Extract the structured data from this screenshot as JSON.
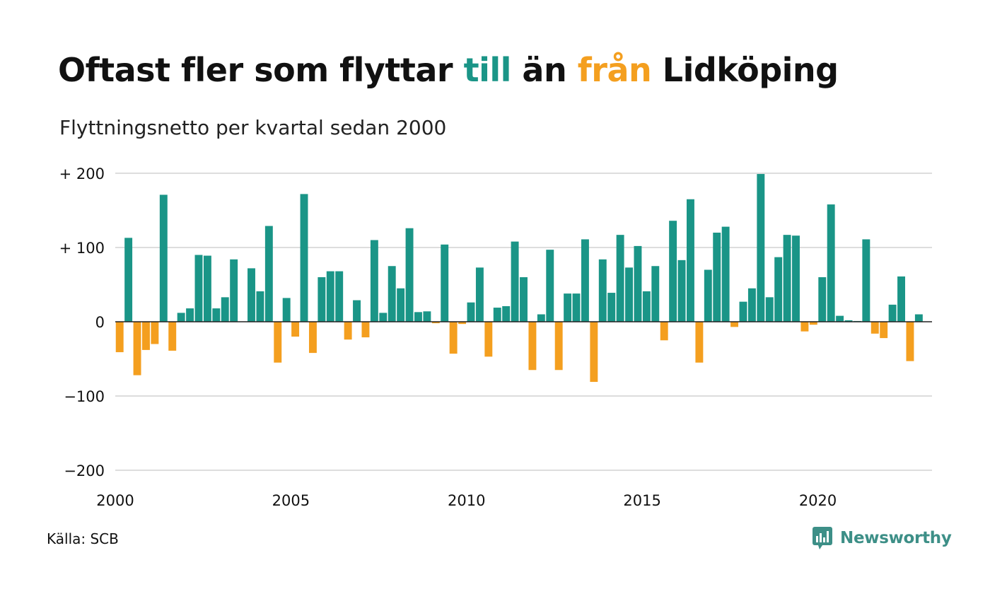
{
  "title": {
    "part1": "Oftast fler som flyttar ",
    "part2": "till",
    "part3": " än ",
    "part4": "från",
    "part5": " Lidköping"
  },
  "subtitle": "Flyttningsnetto per kvartal sedan 2000",
  "source": "Källa: SCB",
  "brand": "Newsworthy",
  "colors": {
    "positive": "#1a9587",
    "negative": "#f49f1f",
    "grid": "#dddddd",
    "brand": "#3d8f87"
  },
  "chart_data": {
    "type": "bar",
    "title": "Oftast fler som flyttar till än från Lidköping",
    "subtitle": "Flyttningsnetto per kvartal sedan 2000",
    "x_start": 2000,
    "x_step": 0.25,
    "xlim": [
      2000,
      2023.25
    ],
    "ylim": [
      -200,
      200
    ],
    "yticks": [
      {
        "value": 200,
        "label": "+ 200"
      },
      {
        "value": 100,
        "label": "+ 100"
      },
      {
        "value": 0,
        "label": "0"
      },
      {
        "value": -100,
        "label": "−100"
      },
      {
        "value": -200,
        "label": "−200"
      }
    ],
    "xticks": [
      {
        "value": 2000,
        "label": "2000"
      },
      {
        "value": 2005,
        "label": "2005"
      },
      {
        "value": 2010,
        "label": "2010"
      },
      {
        "value": 2015,
        "label": "2015"
      },
      {
        "value": 2020,
        "label": "2020"
      }
    ],
    "grid": true,
    "values": [
      -41,
      113,
      -72,
      -38,
      -30,
      171,
      -39,
      12,
      18,
      90,
      89,
      18,
      33,
      84,
      0,
      72,
      41,
      129,
      -55,
      32,
      -20,
      172,
      -42,
      60,
      68,
      68,
      -24,
      29,
      -21,
      110,
      12,
      75,
      45,
      126,
      13,
      14,
      -2,
      104,
      -43,
      -3,
      26,
      73,
      -47,
      19,
      21,
      108,
      60,
      -65,
      10,
      97,
      -65,
      38,
      38,
      111,
      -81,
      84,
      39,
      117,
      73,
      102,
      41,
      75,
      -25,
      136,
      83,
      165,
      -55,
      70,
      120,
      128,
      -7,
      27,
      45,
      199,
      33,
      87,
      117,
      116,
      -13,
      -4,
      60,
      158,
      8,
      2,
      1,
      111,
      -16,
      -22,
      23,
      61,
      -53,
      10
    ]
  }
}
